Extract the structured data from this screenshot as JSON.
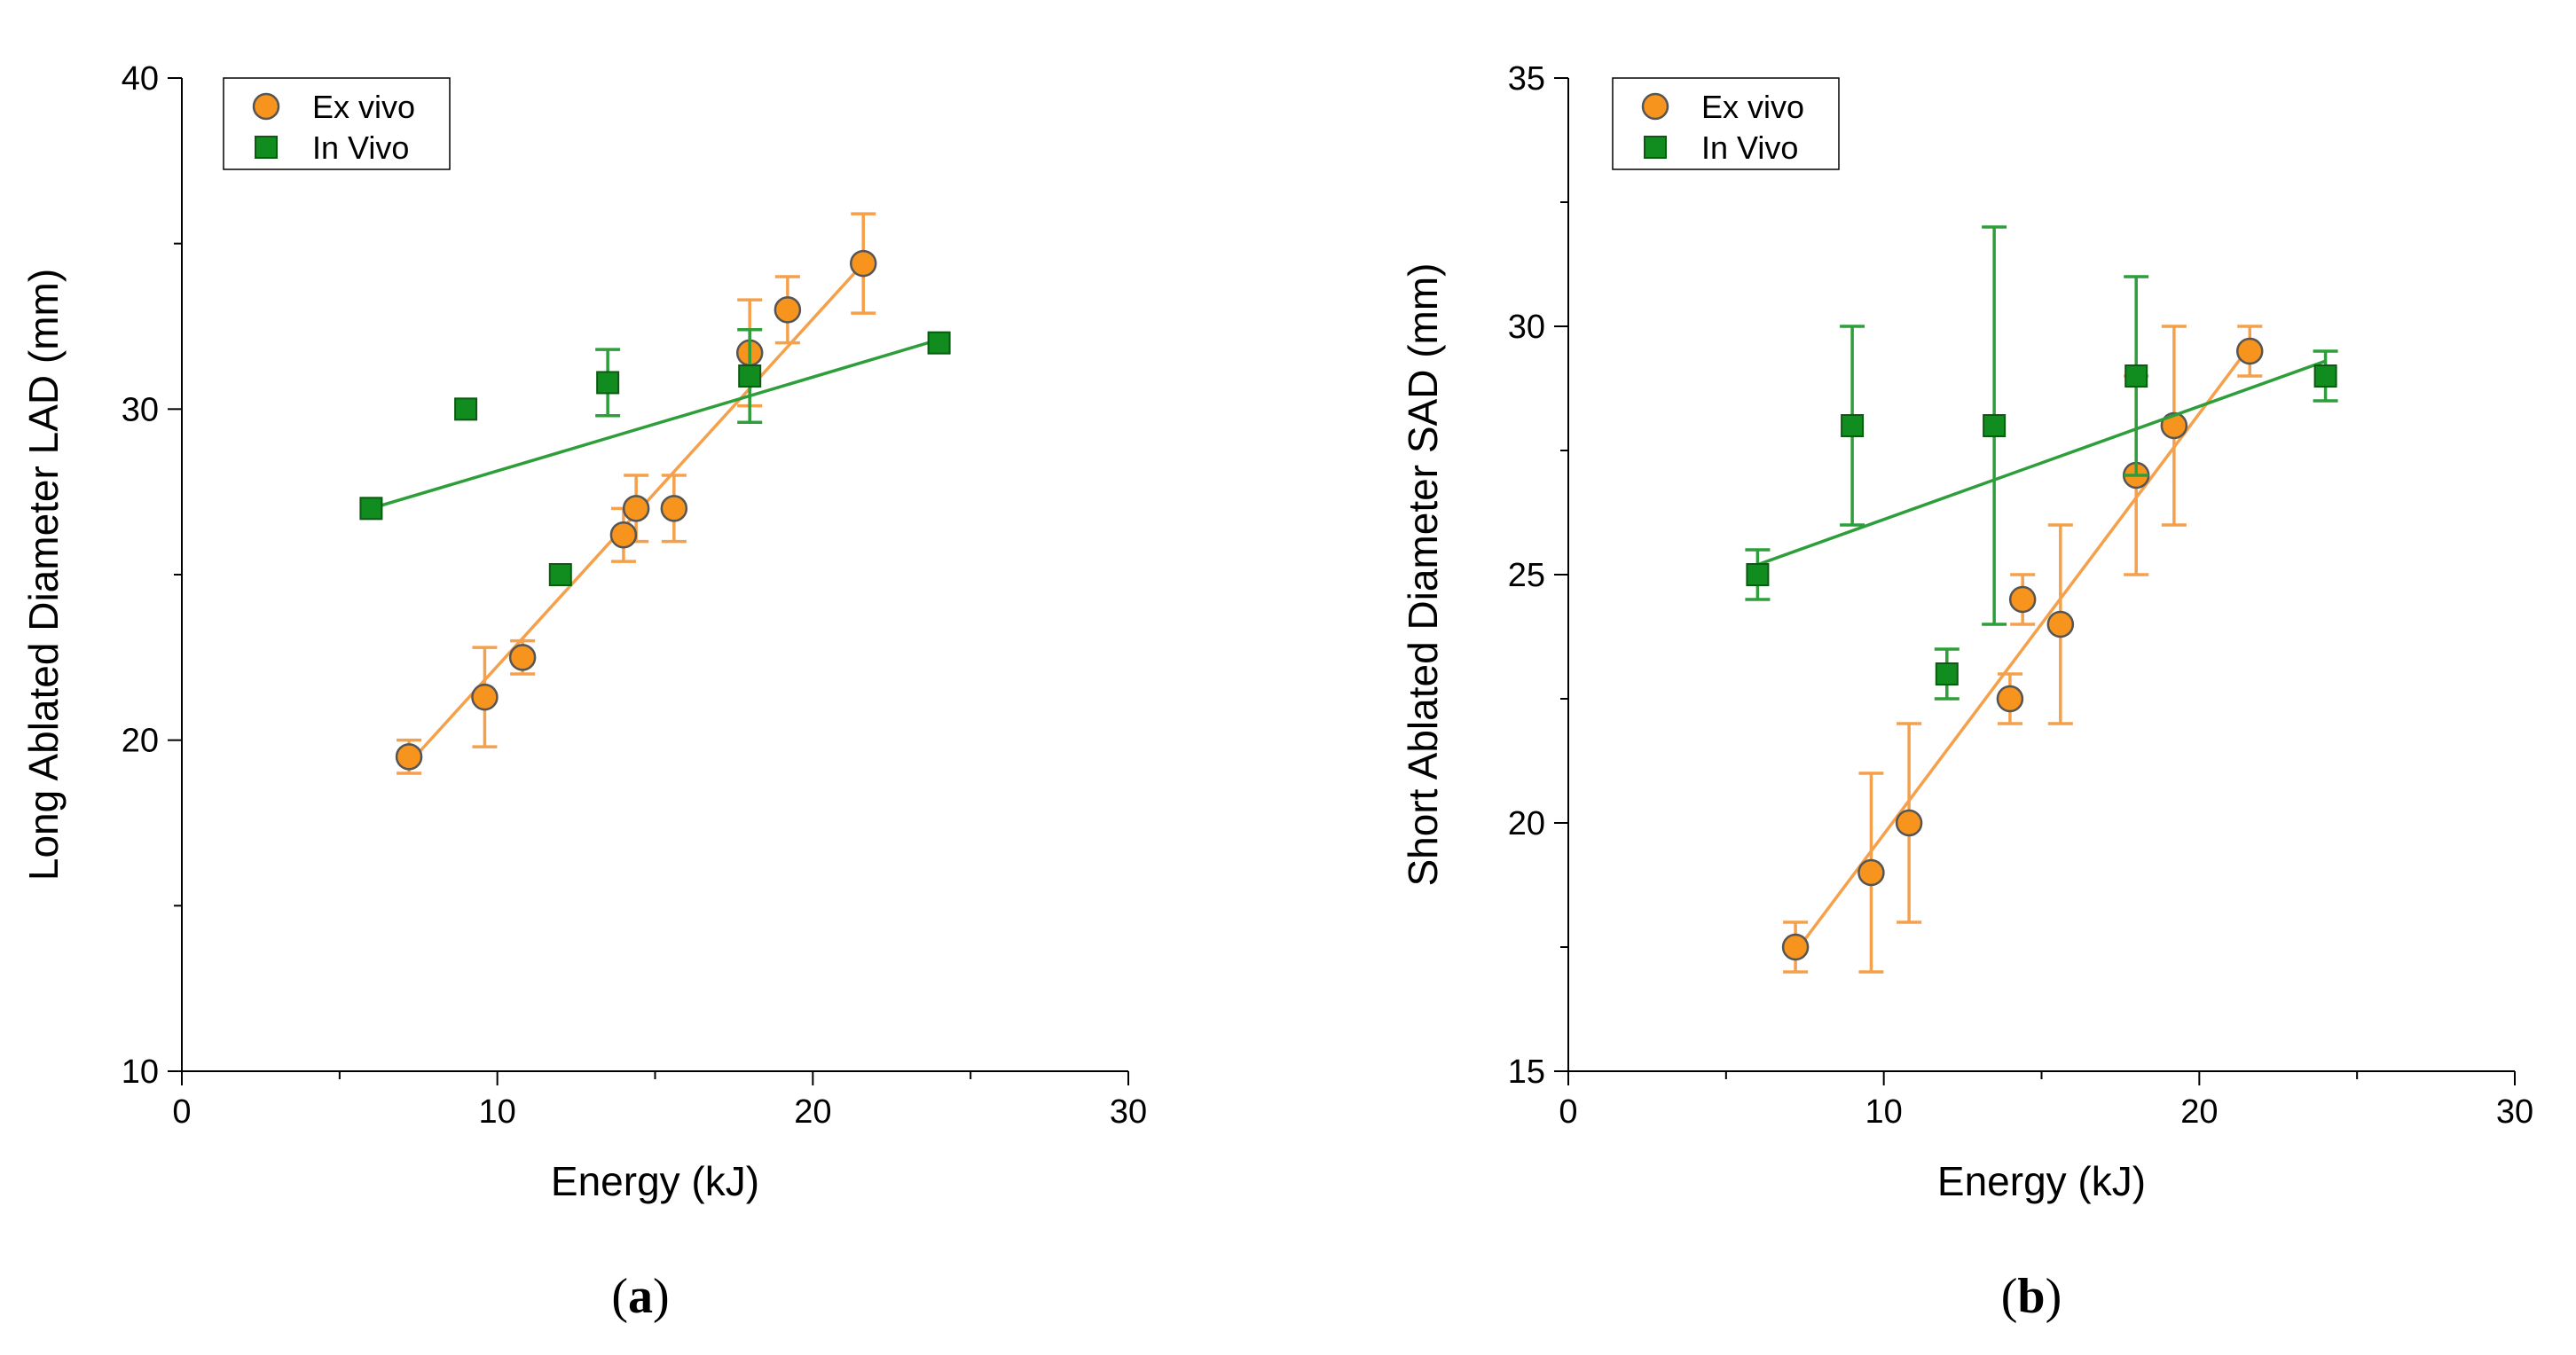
{
  "colors": {
    "ex_vivo": "#F7941D",
    "ex_vivo_stroke": "#555555",
    "ex_vivo_line": "#F5A04A",
    "in_vivo": "#118C1E",
    "in_vivo_stroke": "#0B5A12",
    "in_vivo_line": "#2E9E3A"
  },
  "chart_data": [
    {
      "type": "scatter",
      "panel_label": {
        "open": "(",
        "letter": "a",
        "close": ")"
      },
      "xlabel": "Energy (kJ)",
      "ylabel": "Long Ablated Diameter LAD (mm)",
      "xlim": [
        0,
        30
      ],
      "ylim": [
        10,
        40
      ],
      "xticks": [
        0,
        10,
        20,
        30
      ],
      "yticks": [
        10,
        20,
        30,
        40
      ],
      "xtick_labels": [
        "0",
        "10",
        "20",
        "30"
      ],
      "ytick_labels": [
        "10",
        "20",
        "30",
        "40"
      ],
      "legend": {
        "position": "top-left",
        "entries": [
          "Ex vivo",
          "In Vivo"
        ]
      },
      "series": [
        {
          "name": "Ex vivo",
          "marker": "circle",
          "x": [
            7.2,
            9.6,
            10.8,
            14.0,
            14.4,
            15.6,
            18.0,
            19.2,
            21.6
          ],
          "y": [
            19.5,
            21.3,
            22.5,
            26.2,
            27.0,
            27.0,
            31.7,
            33.0,
            34.4
          ],
          "err": [
            0.5,
            1.5,
            0.5,
            0.8,
            1.0,
            1.0,
            1.6,
            1.0,
            1.5
          ],
          "fit": {
            "x": [
              7.2,
              21.6
            ],
            "y": [
              19.3,
              34.4
            ]
          }
        },
        {
          "name": "In Vivo",
          "marker": "square",
          "x": [
            6.0,
            9.0,
            12.0,
            13.5,
            18.0,
            24.0
          ],
          "y": [
            27.0,
            30.0,
            25.0,
            30.8,
            31.0,
            32.0
          ],
          "err": [
            0,
            0,
            0,
            1.0,
            1.4,
            0
          ],
          "fit": {
            "x": [
              6.0,
              24.0
            ],
            "y": [
              27.0,
              32.1
            ]
          }
        }
      ]
    },
    {
      "type": "scatter",
      "panel_label": {
        "open": "(",
        "letter": "b",
        "close": ")"
      },
      "xlabel": "Energy (kJ)",
      "ylabel": "Short Ablated Diameter SAD (mm)",
      "xlim": [
        0,
        30
      ],
      "ylim": [
        15,
        35
      ],
      "xticks": [
        0,
        10,
        20,
        30
      ],
      "yticks": [
        15,
        20,
        25,
        30,
        35
      ],
      "xtick_labels": [
        "0",
        "10",
        "20",
        "30"
      ],
      "ytick_labels": [
        "15",
        "20",
        "25",
        "30",
        "35"
      ],
      "legend": {
        "position": "top-left",
        "entries": [
          "Ex vivo",
          "In Vivo"
        ]
      },
      "series": [
        {
          "name": "Ex vivo",
          "marker": "circle",
          "x": [
            7.2,
            9.6,
            10.8,
            14.0,
            14.4,
            15.6,
            18.0,
            19.2,
            21.6
          ],
          "y": [
            17.5,
            19.0,
            20.0,
            22.5,
            24.5,
            24.0,
            27.0,
            28.0,
            29.5
          ],
          "err": [
            0.5,
            2.0,
            2.0,
            0.5,
            0.5,
            2.0,
            2.0,
            2.0,
            0.5
          ],
          "fit": {
            "x": [
              7.2,
              21.6
            ],
            "y": [
              17.4,
              29.6
            ]
          }
        },
        {
          "name": "In Vivo",
          "marker": "square",
          "x": [
            6.0,
            9.0,
            12.0,
            13.5,
            18.0,
            24.0
          ],
          "y": [
            25.0,
            28.0,
            23.0,
            28.0,
            29.0,
            29.0
          ],
          "err": [
            0.5,
            2.0,
            0.5,
            4.0,
            2.0,
            0.5
          ],
          "fit": {
            "x": [
              6.0,
              24.0
            ],
            "y": [
              25.2,
              29.3
            ]
          }
        }
      ]
    }
  ]
}
